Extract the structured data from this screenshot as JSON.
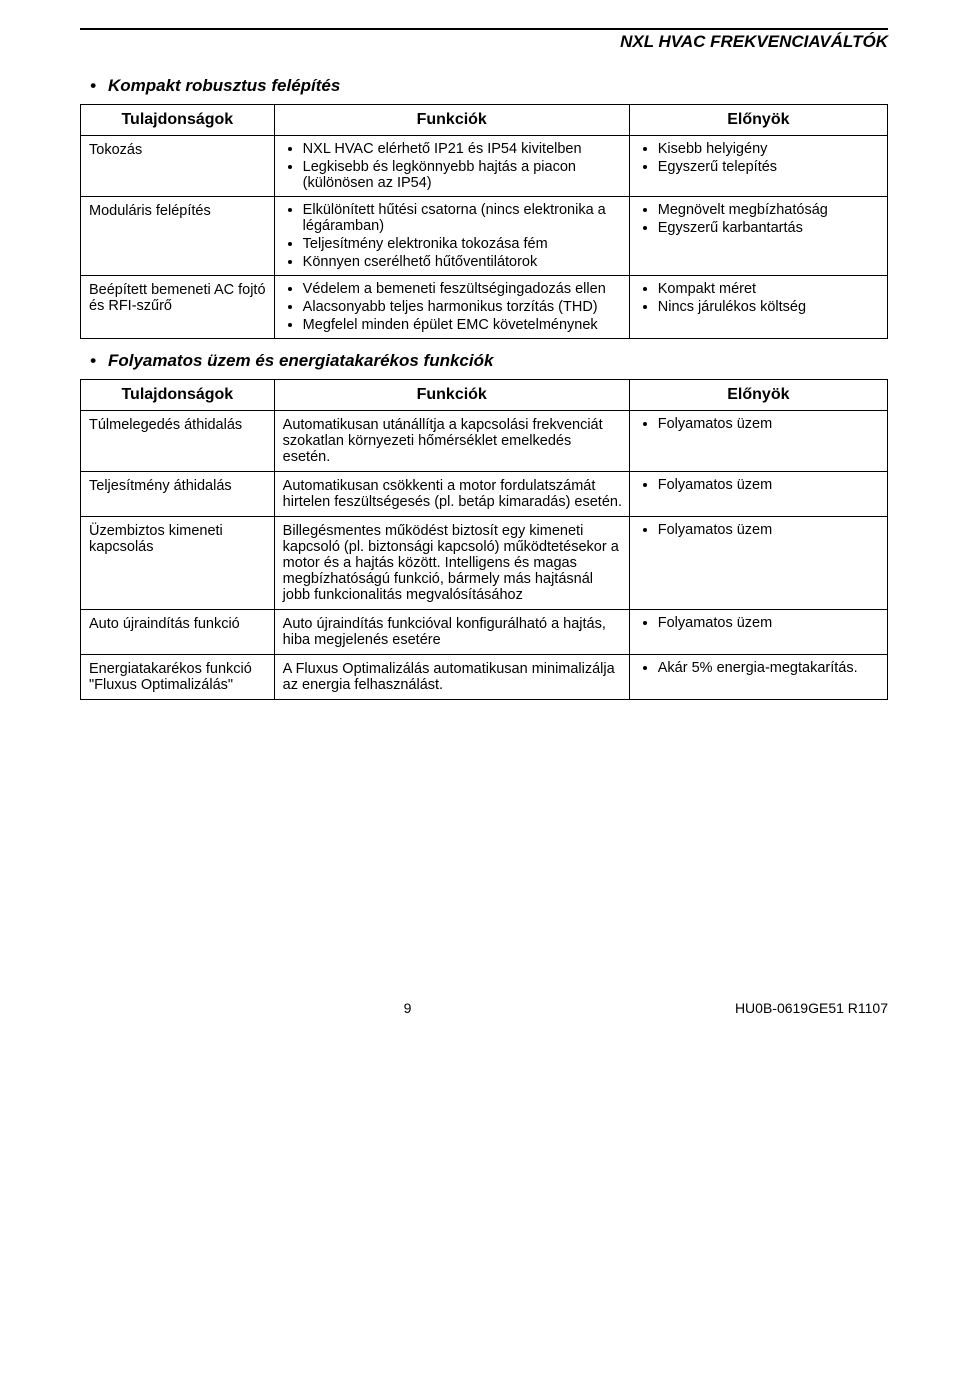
{
  "header": {
    "doc_title": "NXL HVAC FREKVENCIAVÁLTÓK"
  },
  "section1": {
    "heading": "Kompakt robusztus felépítés",
    "table": {
      "headers": [
        "Tulajdonságok",
        "Funkciók",
        "Előnyök"
      ],
      "rows": [
        {
          "prop": "Tokozás",
          "funcs": [
            "NXL HVAC elérhető IP21 és IP54 kivitelben",
            "Legkisebb és legkönnyebb hajtás a piacon (különösen az IP54)"
          ],
          "bens": [
            "Kisebb helyigény",
            "Egyszerű telepítés"
          ]
        },
        {
          "prop": "Moduláris felépítés",
          "funcs": [
            "Elkülönített hűtési csatorna (nincs elektronika a légáramban)",
            "Teljesítmény elektronika tokozása fém",
            "Könnyen cserélhető hűtőventilátorok"
          ],
          "bens": [
            "Megnövelt megbízhatóság",
            "Egyszerű karbantartás"
          ]
        },
        {
          "prop": "Beépített bemeneti AC fojtó és RFI-szűrő",
          "funcs": [
            "Védelem a bemeneti feszültségingadozás ellen",
            "Alacsonyabb teljes harmonikus torzítás (THD)",
            "Megfelel minden épület EMC követelménynek"
          ],
          "bens": [
            "Kompakt méret",
            "Nincs járulékos költség"
          ]
        }
      ]
    }
  },
  "section2": {
    "heading": "Folyamatos üzem és energiatakarékos funkciók",
    "table": {
      "headers": [
        "Tulajdonságok",
        "Funkciók",
        "Előnyök"
      ],
      "rows": [
        {
          "prop": "Túlmelegedés áthidalás",
          "func_text": "Automatikusan utánállítja a kapcsolási frekvenciát szokatlan környezeti hőmérséklet emelkedés esetén.",
          "bens": [
            "Folyamatos üzem"
          ]
        },
        {
          "prop": "Teljesítmény áthidalás",
          "func_text": "Automatikusan csökkenti a motor fordulatszámát hirtelen feszültségesés (pl. betáp kimaradás) esetén.",
          "bens": [
            "Folyamatos üzem"
          ]
        },
        {
          "prop": "Üzembiztos kimeneti kapcsolás",
          "func_text": "Billegésmentes működést biztosít egy kimeneti kapcsoló (pl. biztonsági kapcsoló) működtetésekor a motor és a hajtás között. Intelligens és magas megbízhatóságú funkció, bármely más hajtásnál jobb funkcionalitás megvalósításához",
          "bens": [
            "Folyamatos üzem"
          ]
        },
        {
          "prop": "Auto újraindítás funkció",
          "func_text": "Auto újraindítás funkcióval konfigurálható a hajtás, hiba megjelenés esetére",
          "bens": [
            "Folyamatos üzem"
          ]
        },
        {
          "prop": "Energiatakarékos funkció \"Fluxus Optimalizálás\"",
          "func_text": "A Fluxus Optimalizálás automatikusan minimalizálja az energia felhasználást.",
          "bens": [
            "Akár 5% energia-megtakarítás."
          ]
        }
      ]
    }
  },
  "footer": {
    "page_no": "9",
    "doc_ref": "HU0B-0619GE51 R1107"
  }
}
